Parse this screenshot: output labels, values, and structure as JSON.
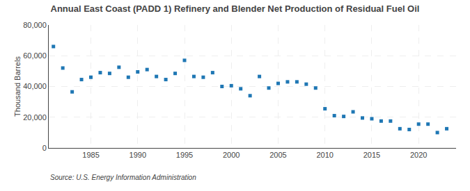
{
  "chart_data": {
    "type": "scatter",
    "title": "Annual East Coast (PADD 1) Refinery and Blender Net Production of Residual Fuel Oil",
    "ylabel": "Thousand Barrels",
    "annotations": [
      "Source: U.S. Energy Information Administration"
    ],
    "marker": "square",
    "x": [
      1981,
      1982,
      1983,
      1984,
      1985,
      1986,
      1987,
      1988,
      1989,
      1990,
      1991,
      1992,
      1993,
      1994,
      1995,
      1996,
      1997,
      1998,
      1999,
      2000,
      2001,
      2002,
      2003,
      2004,
      2005,
      2006,
      2007,
      2008,
      2009,
      2010,
      2011,
      2012,
      2013,
      2014,
      2015,
      2016,
      2017,
      2018,
      2019,
      2020,
      2021,
      2022,
      2023
    ],
    "values": [
      66000,
      52000,
      36500,
      44500,
      46000,
      49000,
      48500,
      52500,
      46000,
      49500,
      51000,
      46500,
      44500,
      48500,
      57000,
      46500,
      46000,
      49000,
      40000,
      40500,
      38500,
      34000,
      46500,
      39000,
      42000,
      43000,
      43000,
      41500,
      39000,
      25500,
      21000,
      20500,
      23500,
      19500,
      19000,
      17500,
      17500,
      12500,
      12000,
      15500,
      15500,
      10000,
      12500
    ],
    "xlim": [
      1980.5,
      2024
    ],
    "xticks": [
      1985,
      1990,
      1995,
      2000,
      2005,
      2010,
      2015,
      2020
    ],
    "ylim": [
      0,
      80000
    ],
    "yticks": [
      0,
      {
        "value": 20000,
        "label": "20,000"
      },
      {
        "value": 40000,
        "label": "40,000"
      },
      {
        "value": 60000,
        "label": "60,000"
      },
      {
        "value": 80000,
        "label": "80,000"
      }
    ],
    "grid": true
  }
}
